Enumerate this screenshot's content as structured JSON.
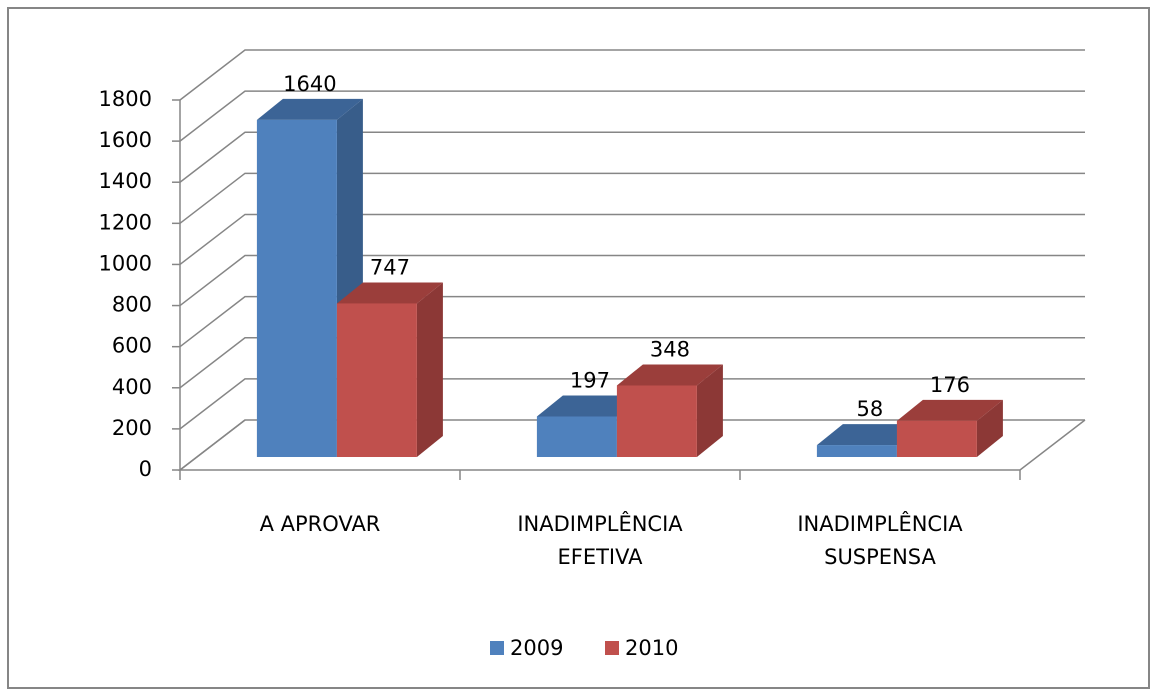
{
  "chart_data": {
    "type": "bar3d",
    "categories": [
      [
        "A APROVAR"
      ],
      [
        "INADIMPLÊNCIA",
        "EFETIVA"
      ],
      [
        "INADIMPLÊNCIA",
        "SUSPENSA"
      ]
    ],
    "series": [
      {
        "name": "2009",
        "color": "#4f81bd",
        "side": "#385d8a",
        "top": "#3c6496",
        "values": [
          1640,
          197,
          58
        ]
      },
      {
        "name": "2010",
        "color": "#c0504d",
        "side": "#8c3836",
        "top": "#9b3e3b",
        "values": [
          747,
          348,
          176
        ]
      }
    ],
    "ylim": [
      0,
      1800
    ],
    "yticks": [
      0,
      200,
      400,
      600,
      800,
      1000,
      1200,
      1400,
      1600,
      1800
    ],
    "grid": true,
    "legend": "bottom"
  }
}
